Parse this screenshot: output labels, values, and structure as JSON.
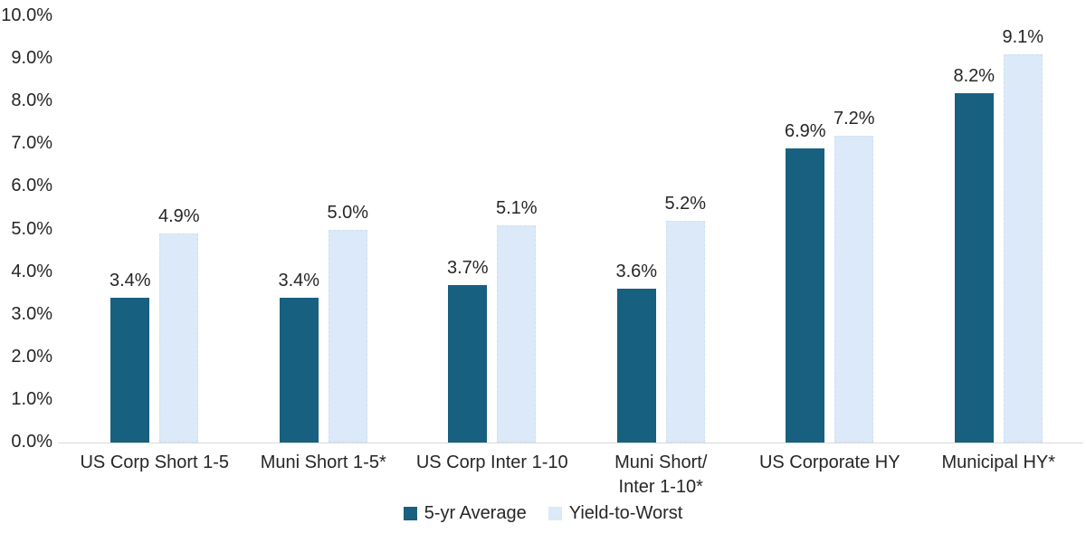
{
  "chart_data": {
    "type": "bar",
    "title": "",
    "xlabel": "",
    "ylabel": "",
    "categories": [
      "US Corp Short 1-5",
      "Muni Short 1-5*",
      "US Corp Inter 1-10",
      "Muni Short/\nInter 1-10*",
      "US Corporate HY",
      "Municipal HY*"
    ],
    "series": [
      {
        "name": "5-yr Average",
        "color": "#17607F",
        "values": [
          3.4,
          3.4,
          3.7,
          3.6,
          6.9,
          8.2
        ],
        "labels": [
          "3.4%",
          "3.4%",
          "3.7%",
          "3.6%",
          "6.9%",
          "8.2%"
        ]
      },
      {
        "name": "Yield-to-Worst",
        "color": "#DBE9F8",
        "values": [
          4.9,
          5.0,
          5.1,
          5.2,
          7.2,
          9.1
        ],
        "labels": [
          "4.9%",
          "5.0%",
          "5.1%",
          "5.2%",
          "7.2%",
          "9.1%"
        ]
      }
    ],
    "ylim": [
      0,
      10
    ],
    "yticks": [
      "0.0%",
      "1.0%",
      "2.0%",
      "3.0%",
      "4.0%",
      "5.0%",
      "6.0%",
      "7.0%",
      "8.0%",
      "9.0%",
      "10.0%"
    ],
    "grid": false,
    "legend_position": "bottom",
    "axis_line_color": "#d9d9d9",
    "text_color": "#262626",
    "background_color": "#ffffff"
  }
}
